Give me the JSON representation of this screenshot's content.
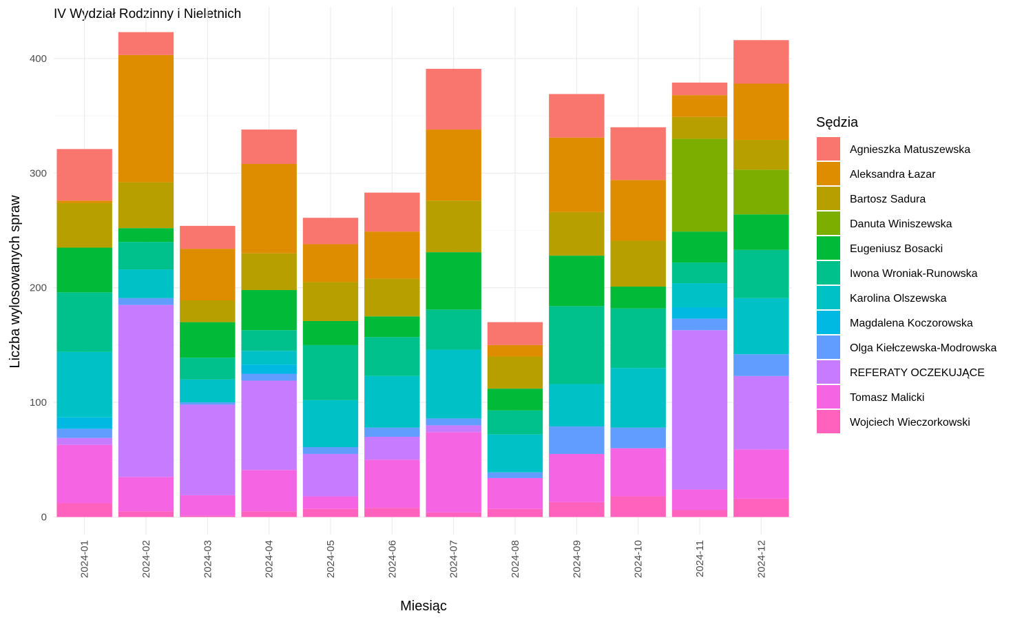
{
  "chart_data": {
    "type": "bar",
    "stacked": true,
    "title": "IV Wydział Rodzinny i Nieletnich",
    "xlabel": "Miesiąc",
    "ylabel": "Liczba wylosowanych spraw",
    "ylim": [
      0,
      440
    ],
    "yticks": [
      0,
      100,
      200,
      300,
      400
    ],
    "grid": true,
    "legend_title": "Sędzia",
    "legend_position": "right",
    "categories": [
      "2024-01",
      "2024-02",
      "2024-03",
      "2024-04",
      "2024-05",
      "2024-06",
      "2024-07",
      "2024-08",
      "2024-09",
      "2024-10",
      "2024-11",
      "2024-12"
    ],
    "series": [
      {
        "name": "Wojciech Wieczorkowski",
        "color": "#FF62BC",
        "values": [
          12,
          5,
          1,
          5,
          7,
          8,
          4,
          7,
          13,
          18,
          6,
          16
        ]
      },
      {
        "name": "Tomasz Malicki",
        "color": "#F564E3",
        "values": [
          51,
          30,
          18,
          36,
          11,
          42,
          70,
          27,
          42,
          42,
          18,
          43
        ]
      },
      {
        "name": "REFERATY OCZEKUJĄCE",
        "color": "#C77CFF",
        "values": [
          6,
          150,
          79,
          78,
          37,
          20,
          6,
          0,
          0,
          0,
          139,
          64
        ]
      },
      {
        "name": "Olga Kiełczewska-Modrowska",
        "color": "#619CFF",
        "values": [
          8,
          6,
          2,
          6,
          6,
          8,
          6,
          5,
          24,
          18,
          10,
          19
        ]
      },
      {
        "name": "Magdalena Koczorowska",
        "color": "#00B9E3",
        "values": [
          10,
          0,
          0,
          8,
          0,
          0,
          0,
          0,
          0,
          0,
          10,
          0
        ]
      },
      {
        "name": "Karolina Olszewska",
        "color": "#00C1C6",
        "values": [
          57,
          25,
          20,
          12,
          41,
          45,
          60,
          33,
          37,
          52,
          21,
          49
        ]
      },
      {
        "name": "Iwona Wroniak-Runowska",
        "color": "#00C08B",
        "values": [
          52,
          24,
          19,
          18,
          48,
          34,
          35,
          21,
          68,
          52,
          18,
          42
        ]
      },
      {
        "name": "Eugeniusz Bosacki",
        "color": "#00BA38",
        "values": [
          39,
          12,
          31,
          35,
          21,
          18,
          50,
          19,
          44,
          19,
          27,
          31
        ]
      },
      {
        "name": "Danuta Winiszewska",
        "color": "#7CAE00",
        "values": [
          0,
          0,
          0,
          0,
          0,
          0,
          0,
          0,
          0,
          0,
          81,
          39
        ]
      },
      {
        "name": "Bartosz Sadura",
        "color": "#B79F00",
        "values": [
          39,
          40,
          19,
          32,
          34,
          33,
          45,
          28,
          38,
          40,
          19,
          26
        ]
      },
      {
        "name": "Aleksandra Łazar",
        "color": "#DE8C00",
        "values": [
          2,
          111,
          45,
          78,
          33,
          41,
          62,
          10,
          65,
          53,
          19,
          49
        ]
      },
      {
        "name": "Agnieszka Matuszewska",
        "color": "#F8766D",
        "values": [
          45,
          20,
          20,
          30,
          23,
          34,
          53,
          20,
          38,
          46,
          11,
          38
        ]
      }
    ]
  }
}
